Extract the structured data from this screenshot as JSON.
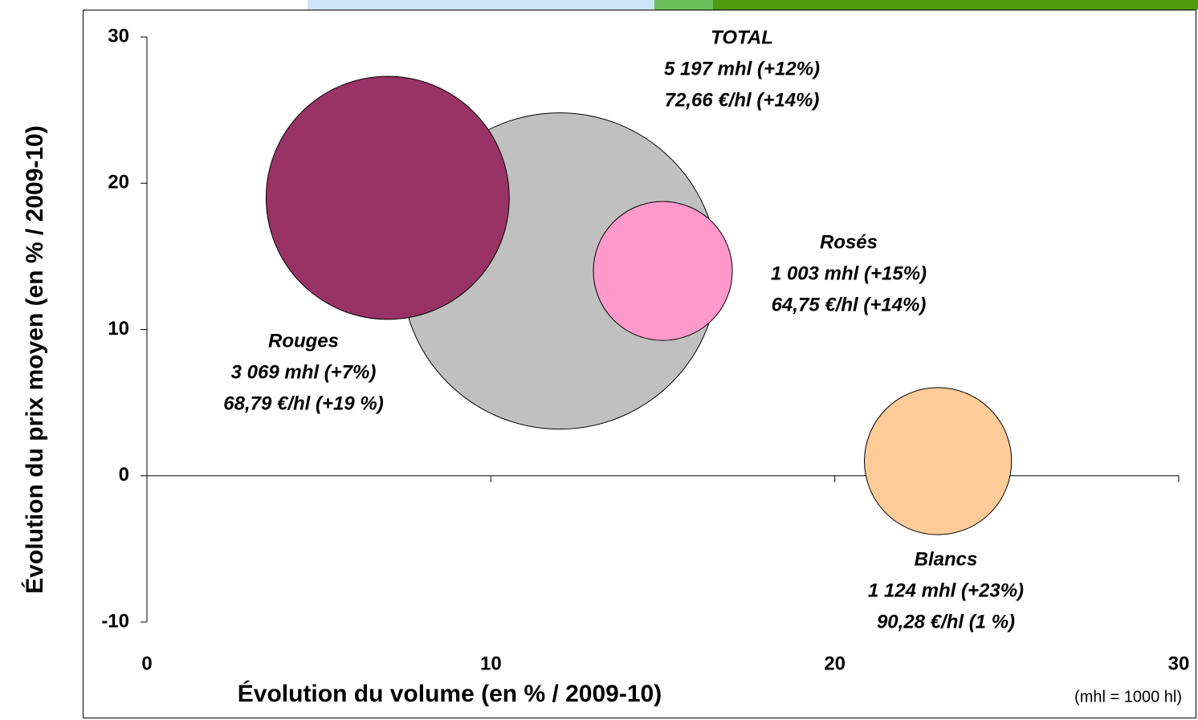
{
  "chart_data": {
    "type": "bubble",
    "xlabel": "Évolution du volume (en % / 2009-10)",
    "ylabel": "Évolution du prix moyen (en % / 2009-10)",
    "note": "(mhl = 1000 hl)",
    "xlim": [
      0,
      30
    ],
    "xticks": [
      0,
      10,
      20,
      30
    ],
    "ylim": [
      -10,
      30
    ],
    "yticks": [
      -10,
      0,
      10,
      20,
      30
    ],
    "series": [
      {
        "name": "TOTAL",
        "color": "#c0c0c0",
        "x": [
          12
        ],
        "values": [
          14
        ],
        "sizes": [
          5197
        ],
        "labels": [
          "5 197 mhl (+12%)",
          "72,66 €/hl (+14%)"
        ]
      },
      {
        "name": "Rouges",
        "color": "#993366",
        "x": [
          7
        ],
        "values": [
          19
        ],
        "sizes": [
          3069
        ],
        "labels": [
          "3 069 mhl (+7%)",
          "68,79 €/hl (+19 %)"
        ]
      },
      {
        "name": "Rosés",
        "color": "#ff99cc",
        "x": [
          15
        ],
        "values": [
          14
        ],
        "sizes": [
          1003
        ],
        "labels": [
          "1 003 mhl (+15%)",
          "64,75 €/hl (+14%)"
        ]
      },
      {
        "name": "Blancs",
        "color": "#ffcc99",
        "x": [
          23
        ],
        "values": [
          1
        ],
        "sizes": [
          1124
        ],
        "labels": [
          "1 124 mhl (+23%)",
          "90,28 €/hl (1 %)"
        ]
      }
    ]
  }
}
